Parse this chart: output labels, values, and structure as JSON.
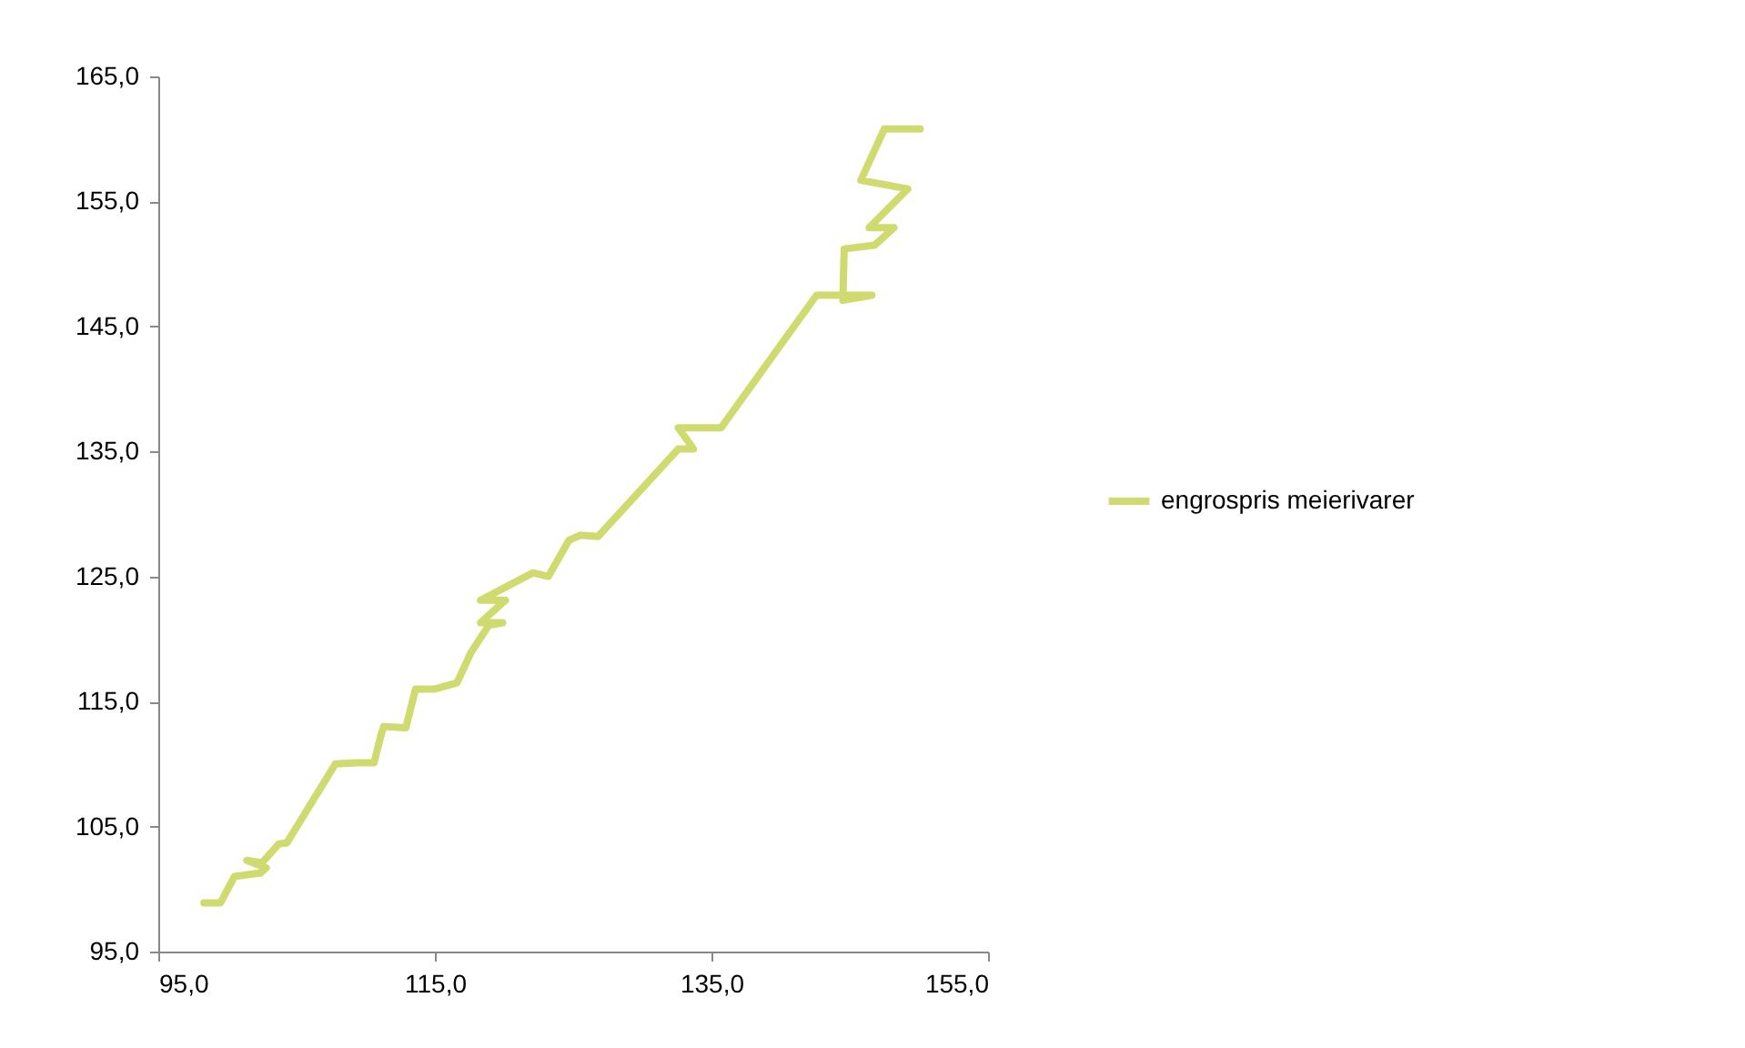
{
  "chart_data": {
    "type": "line",
    "legend": "right",
    "grid": false,
    "marker": "none",
    "line_style": "solid",
    "xlim": [
      95,
      155
    ],
    "ylim": [
      95,
      165
    ],
    "xticks": [
      {
        "value": 95,
        "label": "95,0"
      },
      {
        "value": 115,
        "label": "115,0"
      },
      {
        "value": 135,
        "label": "135,0"
      },
      {
        "value": 155,
        "label": "155,0"
      }
    ],
    "yticks": [
      {
        "value": 95,
        "label": "95,0"
      },
      {
        "value": 105,
        "label": "105,0"
      },
      {
        "value": 115,
        "label": "115,0"
      },
      {
        "value": 125,
        "label": "125,0"
      },
      {
        "value": 135,
        "label": "135,0"
      },
      {
        "value": 145,
        "label": "145,0"
      },
      {
        "value": 155,
        "label": "155,0"
      },
      {
        "value": 165,
        "label": "165,0"
      }
    ],
    "series": [
      {
        "name": "engrospris meierivarer",
        "color": "#cfdb6e",
        "x": [
          98.3,
          99.5,
          100.5,
          102.4,
          102.8,
          101.4,
          102.5,
          103.7,
          104.3,
          107.8,
          109.3,
          110.6,
          111.1,
          111.3,
          112.9,
          113.6,
          115.0,
          116.6,
          117.6,
          118.9,
          119.9,
          118.3,
          120.1,
          118.3,
          122.1,
          123.2,
          124.7,
          125.5,
          126.8,
          132.6,
          133.7,
          132.6,
          135.7,
          140.9,
          142.6,
          146.6,
          144.5,
          144.6,
          146.8,
          148.2,
          146.4,
          149.2,
          145.8,
          147.5,
          150.1
        ],
        "values": [
          98.9,
          98.9,
          101.0,
          101.3,
          101.7,
          102.3,
          102.1,
          103.6,
          103.7,
          110.0,
          110.1,
          110.1,
          112.3,
          113.0,
          112.9,
          116.0,
          116.0,
          116.5,
          118.9,
          121.1,
          121.3,
          121.3,
          123.1,
          123.1,
          125.3,
          125.0,
          127.9,
          128.3,
          128.2,
          135.2,
          135.2,
          136.9,
          136.9,
          144.9,
          147.5,
          147.5,
          147.1,
          151.2,
          151.5,
          152.9,
          152.9,
          156.0,
          156.7,
          160.8,
          160.8
        ]
      }
    ]
  }
}
